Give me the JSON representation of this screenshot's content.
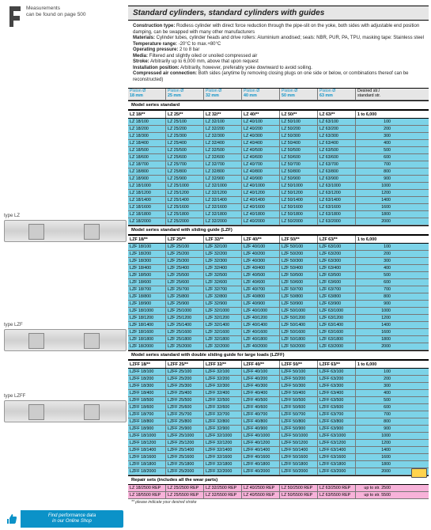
{
  "measurements": {
    "line1": "Measurements",
    "line2": "can be found on page 500"
  },
  "title": "Standard cylinders, standard cylinders with guides",
  "desc": {
    "d1k": "Construction type:",
    "d1v": " Rodless cylinder with direct force reduction through the pipe-slit on the yoke, both sides with adjustable end position damping, can be swapped with many other manufacturers",
    "d2k": "Materials:",
    "d2v": " Cylinder tubes, cylinder heads and drive rollers: Aluminium anodised; seals: NBR, PUR, PA, TPU, masking tape: Stainless steel",
    "d3k": "Temperature range:",
    "d3v": " -20°C to max.+80°C",
    "d4k": "Operating pressure:",
    "d4v": " 2 to 8 bar",
    "d5k": "Media:",
    "d5v": " Filtered and slightly oiled or unoiled compressed air",
    "d6k": "Stroke:",
    "d6v": " Arbitrarily up to 6,000 mm, above that upon request",
    "d7k": "Installation position:",
    "d7v": " Arbitrarily, however, preferably yoke downward to avoid soiling.",
    "d8k": "Compressed air connection:",
    "d8v": " Both sides (anytime by removing closing plugs on one side or below, or combinations thereof can be reconstructed)"
  },
  "colhead": {
    "c1a": "Piston Ø",
    "c1b": "18 mm",
    "c2a": "Piston Ø",
    "c2b": "25 mm",
    "c3a": "Piston Ø",
    "c3b": "32 mm",
    "c4a": "Piston Ø",
    "c4b": "40 mm",
    "c5a": "Piston Ø",
    "c5b": "50 mm",
    "c6a": "Piston Ø",
    "c6b": "63 mm",
    "c7a": "Desired str./",
    "c7b": "standard str."
  },
  "sections": [
    {
      "title": "Model series standard",
      "sub": [
        "LZ 18/**",
        "LZ 25/**",
        "LZ 32/**",
        "LZ 40/**",
        "LZ 50/**",
        "LZ 63/**",
        "1 to 6,000"
      ],
      "rows": [
        [
          "LZ 18/100",
          "LZ 25/100",
          "LZ 32/100",
          "LZ 40/100",
          "LZ 50/100",
          "LZ 63/100",
          "100"
        ],
        [
          "LZ 18/200",
          "LZ 25/200",
          "LZ 32/200",
          "LZ 40/200",
          "LZ 50/200",
          "LZ 63/200",
          "200"
        ],
        [
          "LZ 18/300",
          "LZ 25/300",
          "LZ 32/300",
          "LZ 40/300",
          "LZ 50/300",
          "LZ 63/300",
          "300"
        ],
        [
          "LZ 18/400",
          "LZ 25/400",
          "LZ 32/400",
          "LZ 40/400",
          "LZ 50/400",
          "LZ 63/400",
          "400"
        ],
        [
          "LZ 18/500",
          "LZ 25/500",
          "LZ 32/500",
          "LZ 40/500",
          "LZ 50/500",
          "LZ 63/500",
          "500"
        ],
        [
          "LZ 18/600",
          "LZ 25/600",
          "LZ 32/600",
          "LZ 40/600",
          "LZ 50/600",
          "LZ 63/600",
          "600"
        ],
        [
          "LZ 18/700",
          "LZ 25/700",
          "LZ 32/700",
          "LZ 40/700",
          "LZ 50/700",
          "LZ 63/700",
          "700"
        ],
        [
          "LZ 18/800",
          "LZ 25/800",
          "LZ 32/800",
          "LZ 40/800",
          "LZ 50/800",
          "LZ 63/800",
          "800"
        ],
        [
          "LZ 18/900",
          "LZ 25/900",
          "LZ 32/900",
          "LZ 40/900",
          "LZ 50/900",
          "LZ 63/900",
          "900"
        ],
        [
          "LZ 18/1000",
          "LZ 25/1000",
          "LZ 32/1000",
          "LZ 40/1000",
          "LZ 50/1000",
          "LZ 63/1000",
          "1000"
        ],
        [
          "LZ 18/1200",
          "LZ 25/1200",
          "LZ 32/1200",
          "LZ 40/1200",
          "LZ 50/1200",
          "LZ 63/1200",
          "1200"
        ],
        [
          "LZ 18/1400",
          "LZ 25/1400",
          "LZ 32/1400",
          "LZ 40/1400",
          "LZ 50/1400",
          "LZ 63/1400",
          "1400"
        ],
        [
          "LZ 18/1600",
          "LZ 25/1600",
          "LZ 32/1600",
          "LZ 40/1600",
          "LZ 50/1600",
          "LZ 63/1600",
          "1600"
        ],
        [
          "LZ 18/1800",
          "LZ 25/1800",
          "LZ 32/1800",
          "LZ 40/1800",
          "LZ 50/1800",
          "LZ 63/1800",
          "1800"
        ],
        [
          "LZ 18/2000",
          "LZ 25/2000",
          "LZ 32/2000",
          "LZ 40/2000",
          "LZ 50/2000",
          "LZ 63/2000",
          "2000"
        ]
      ]
    },
    {
      "title": "Model series standard with sliding guide (LZF)",
      "sub": [
        "LZF 18/**",
        "LZF 25/**",
        "LZF 32/**",
        "LZF 40/**",
        "LZF 50/**",
        "LZF 63/**",
        "1 to 6,000"
      ],
      "rows": [
        [
          "LZF 18/100",
          "LZF 25/100",
          "LZF 32/100",
          "LZF 40/100",
          "LZF 50/100",
          "LZF 63/100",
          "100"
        ],
        [
          "LZF 18/200",
          "LZF 25/200",
          "LZF 32/200",
          "LZF 40/200",
          "LZF 50/200",
          "LZF 63/200",
          "200"
        ],
        [
          "LZF 18/300",
          "LZF 25/300",
          "LZF 32/300",
          "LZF 40/300",
          "LZF 50/300",
          "LZF 63/300",
          "300"
        ],
        [
          "LZF 18/400",
          "LZF 25/400",
          "LZF 32/400",
          "LZF 40/400",
          "LZF 50/400",
          "LZF 63/400",
          "400"
        ],
        [
          "LZF 18/500",
          "LZF 25/500",
          "LZF 32/500",
          "LZF 40/500",
          "LZF 50/500",
          "LZF 63/500",
          "500"
        ],
        [
          "LZF 18/600",
          "LZF 25/600",
          "LZF 32/600",
          "LZF 40/600",
          "LZF 50/600",
          "LZF 63/600",
          "600"
        ],
        [
          "LZF 18/700",
          "LZF 25/700",
          "LZF 32/700",
          "LZF 40/700",
          "LZF 50/700",
          "LZF 63/700",
          "700"
        ],
        [
          "LZF 18/800",
          "LZF 25/800",
          "LZF 32/800",
          "LZF 40/800",
          "LZF 50/800",
          "LZF 63/800",
          "800"
        ],
        [
          "LZF 18/900",
          "LZF 25/900",
          "LZF 32/900",
          "LZF 40/900",
          "LZF 50/900",
          "LZF 63/900",
          "900"
        ],
        [
          "LZF 18/1000",
          "LZF 25/1000",
          "LZF 32/1000",
          "LZF 40/1000",
          "LZF 50/1000",
          "LZF 63/1000",
          "1000"
        ],
        [
          "LZF 18/1200",
          "LZF 25/1200",
          "LZF 32/1200",
          "LZF 40/1200",
          "LZF 50/1200",
          "LZF 63/1200",
          "1200"
        ],
        [
          "LZF 18/1400",
          "LZF 25/1400",
          "LZF 32/1400",
          "LZF 40/1400",
          "LZF 50/1400",
          "LZF 63/1400",
          "1400"
        ],
        [
          "LZF 18/1600",
          "LZF 25/1600",
          "LZF 32/1600",
          "LZF 40/1600",
          "LZF 50/1600",
          "LZF 63/1600",
          "1600"
        ],
        [
          "LZF 18/1800",
          "LZF 25/1800",
          "LZF 32/1800",
          "LZF 40/1800",
          "LZF 50/1800",
          "LZF 63/1800",
          "1800"
        ],
        [
          "LZF 18/2000",
          "LZF 25/2000",
          "LZF 32/2000",
          "LZF 40/2000",
          "LZF 50/2000",
          "LZF 63/2000",
          "2000"
        ]
      ]
    },
    {
      "title": "Model series standard with double sliding guide for large loads (LZFF)",
      "sub": [
        "LZFF 18/**",
        "LZFF 25/**",
        "LZFF 32/**",
        "LZFF 40/**",
        "LZFF 50/**",
        "LZFF 63/**",
        "1 to 6,000"
      ],
      "rows": [
        [
          "LZFF 18/100",
          "LZFF 25/100",
          "LZFF 32/100",
          "LZFF 40/100",
          "LZFF 50/100",
          "LZFF 63/100",
          "100"
        ],
        [
          "LZFF 18/200",
          "LZFF 25/200",
          "LZFF 32/200",
          "LZFF 40/200",
          "LZFF 50/200",
          "LZFF 63/200",
          "200"
        ],
        [
          "LZFF 18/300",
          "LZFF 25/300",
          "LZFF 32/300",
          "LZFF 40/300",
          "LZFF 50/300",
          "LZFF 63/300",
          "300"
        ],
        [
          "LZFF 18/400",
          "LZFF 25/400",
          "LZFF 32/400",
          "LZFF 40/400",
          "LZFF 50/400",
          "LZFF 63/400",
          "400"
        ],
        [
          "LZFF 18/500",
          "LZFF 25/500",
          "LZFF 32/500",
          "LZFF 40/500",
          "LZFF 50/500",
          "LZFF 63/500",
          "500"
        ],
        [
          "LZFF 18/600",
          "LZFF 25/600",
          "LZFF 32/600",
          "LZFF 40/600",
          "LZFF 50/600",
          "LZFF 63/600",
          "600"
        ],
        [
          "LZFF 18/700",
          "LZFF 25/700",
          "LZFF 32/700",
          "LZFF 40/700",
          "LZFF 50/700",
          "LZFF 63/700",
          "700"
        ],
        [
          "LZFF 18/800",
          "LZFF 25/800",
          "LZFF 32/800",
          "LZFF 40/800",
          "LZFF 50/800",
          "LZFF 63/800",
          "800"
        ],
        [
          "LZFF 18/900",
          "LZFF 25/900",
          "LZFF 32/900",
          "LZFF 40/900",
          "LZFF 50/900",
          "LZFF 63/900",
          "900"
        ],
        [
          "LZFF 18/1000",
          "LZFF 25/1000",
          "LZFF 32/1000",
          "LZFF 40/1000",
          "LZFF 50/1000",
          "LZFF 63/1000",
          "1000"
        ],
        [
          "LZFF 18/1200",
          "LZFF 25/1200",
          "LZFF 32/1200",
          "LZFF 40/1200",
          "LZFF 50/1200",
          "LZFF 63/1200",
          "1200"
        ],
        [
          "LZFF 18/1400",
          "LZFF 25/1400",
          "LZFF 32/1400",
          "LZFF 40/1400",
          "LZFF 50/1400",
          "LZFF 63/1400",
          "1400"
        ],
        [
          "LZFF 18/1600",
          "LZFF 25/1600",
          "LZFF 32/1600",
          "LZFF 40/1600",
          "LZFF 50/1600",
          "LZFF 63/1600",
          "1600"
        ],
        [
          "LZFF 18/1800",
          "LZFF 25/1800",
          "LZFF 32/1800",
          "LZFF 40/1800",
          "LZFF 50/1800",
          "LZFF 63/1800",
          "1800"
        ],
        [
          "LZFF 18/2000",
          "LZFF 25/2000",
          "LZFF 32/2000",
          "LZFF 40/2000",
          "LZFF 50/2000",
          "LZFF 63/2000",
          "2000"
        ]
      ]
    }
  ],
  "repair": {
    "title": "Repair sets (includes all the wear parts)",
    "rows": [
      [
        "LZ 18/2500 REP",
        "LZ 25/2500 REP",
        "LZ 32/2500 REP",
        "LZ 40/2500 REP",
        "LZ 50/2500 REP",
        "LZ 63/2500 REP",
        "up to str. 2500"
      ],
      [
        "LZ 18/5500 REP",
        "LZ 25/5500 REP",
        "LZ 32/5500 REP",
        "LZ 40/5500 REP",
        "LZ 50/5500 REP",
        "LZ 63/5500 REP",
        "up to str. 5500"
      ]
    ]
  },
  "footnote": "** please indicate your desired stroke",
  "tip": {
    "l1": "Find performance data",
    "l2": "in our Online Shop"
  },
  "cyl": {
    "lz": "type LZ",
    "lzf": "type LZF",
    "lzff": "type LZFF"
  },
  "style": {
    "accent": "#0b92c8",
    "data_bg": "#7cd3e8",
    "repair_bg": "#f7b2d9",
    "header_bg": "#e6e6e6"
  }
}
